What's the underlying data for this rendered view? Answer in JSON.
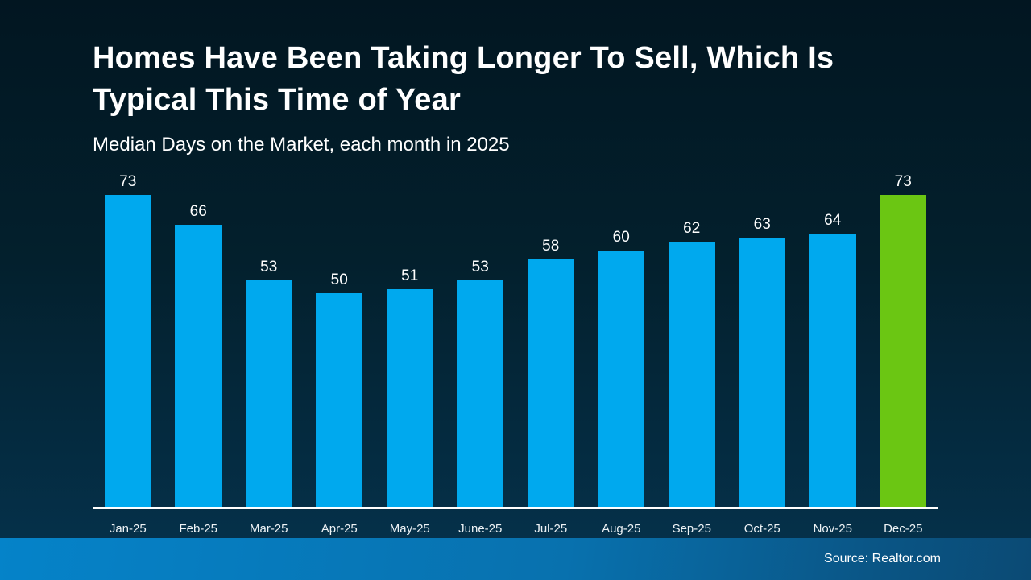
{
  "header": {
    "title_line1": "Homes Have Been Taking Longer To Sell, Which Is",
    "title_line2": "Typical This Time of Year",
    "subtitle": "Median Days on the Market, each month in 2025"
  },
  "footer": {
    "source_label": "Source: Realtor.com"
  },
  "chart_data": {
    "type": "bar",
    "title": "Homes Have Been Taking Longer To Sell, Which Is Typical This Time of Year",
    "subtitle": "Median Days on the Market, each month in 2025",
    "categories": [
      "Jan-25",
      "Feb-25",
      "Mar-25",
      "Apr-25",
      "May-25",
      "June-25",
      "Jul-25",
      "Aug-25",
      "Sep-25",
      "Oct-25",
      "Nov-25",
      "Dec-25"
    ],
    "values": [
      73,
      66,
      53,
      50,
      51,
      53,
      58,
      60,
      62,
      63,
      64,
      73
    ],
    "ylim": [
      0,
      73
    ],
    "xlabel": "",
    "ylabel": "Median Days on the Market",
    "grid": false,
    "legend": "none",
    "data_labels": true,
    "bar_color": "#00A9EE",
    "highlight_index": 11,
    "highlight_color": "#6BC613",
    "background_top": "#021621",
    "background_bottom": "#063452",
    "baseline_color": "#ffffff",
    "source": "Source: Realtor.com"
  }
}
